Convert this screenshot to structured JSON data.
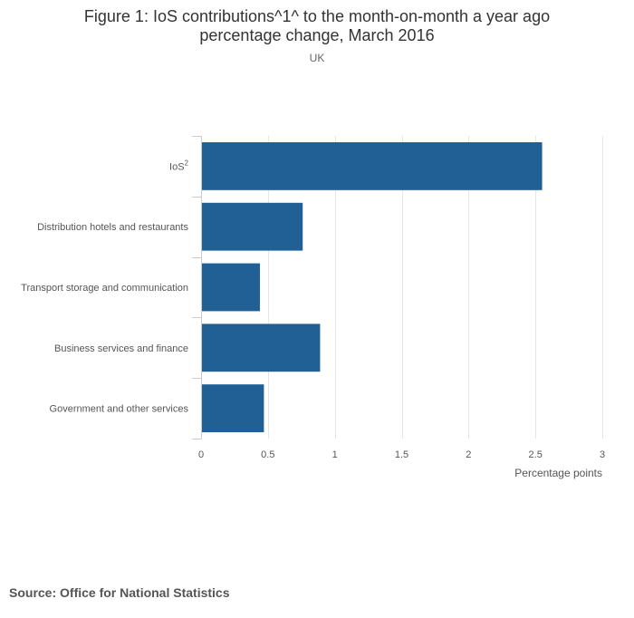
{
  "title": {
    "line1": "Figure 1: IoS contributions^1^ to the month-on-month a year ago",
    "line2": "percentage change, March 2016"
  },
  "subtitle": "UK",
  "source": "Source: Office for National Statistics",
  "colors": {
    "bar": "#206095",
    "grid": "#e6e6e6",
    "axis": "#cccccc"
  },
  "chart_data": {
    "type": "bar",
    "orientation": "horizontal",
    "title": "Figure 1: IoS contributions^1^ to the month-on-month a year ago percentage change, March 2016",
    "subtitle": "UK",
    "categories": [
      "IoS",
      "Distribution hotels and restaurants",
      "Transport storage and communication",
      "Business services and finance",
      "Government and other services"
    ],
    "category_superscripts": [
      "2",
      "",
      "",
      "",
      ""
    ],
    "values": [
      2.55,
      0.76,
      0.44,
      0.89,
      0.47
    ],
    "xlabel": "Percentage points",
    "ylabel": "",
    "xlim": [
      0,
      3
    ],
    "xticks": [
      0,
      0.5,
      1,
      1.5,
      2,
      2.5,
      3
    ],
    "xtick_labels": [
      "0",
      "0.5",
      "1",
      "1.5",
      "2",
      "2.5",
      "3"
    ],
    "grid": true
  }
}
